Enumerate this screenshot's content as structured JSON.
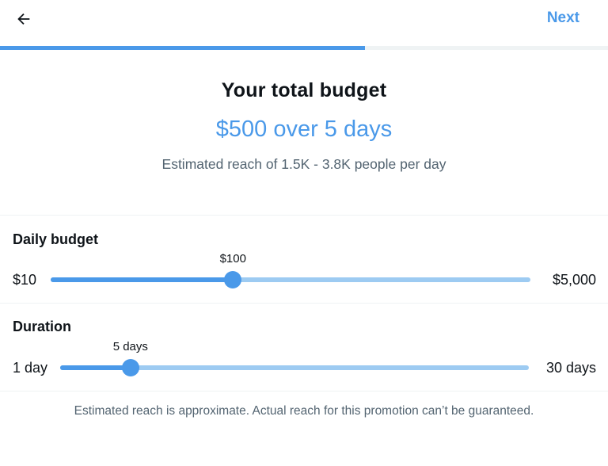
{
  "header": {
    "back_icon": "arrow-left-icon",
    "next_label": "Next",
    "step_progress": 0.6
  },
  "summary": {
    "title": "Your total budget",
    "amount": "$500 over 5 days",
    "reach": "Estimated reach of 1.5K - 3.8K people per day"
  },
  "daily_budget": {
    "label": "Daily budget",
    "min_label": "$10",
    "max_label": "$5,000",
    "value_label": "$100",
    "position": 0.38
  },
  "duration": {
    "label": "Duration",
    "min_label": "1 day",
    "max_label": "30 days",
    "value_label": "5 days",
    "position": 0.15
  },
  "footnote": "Estimated reach is approximate. Actual reach for this promotion can’t be guaranteed.",
  "colors": {
    "accent": "#4a99e9",
    "track_light": "#9dcbf2",
    "muted_text": "#536471"
  }
}
